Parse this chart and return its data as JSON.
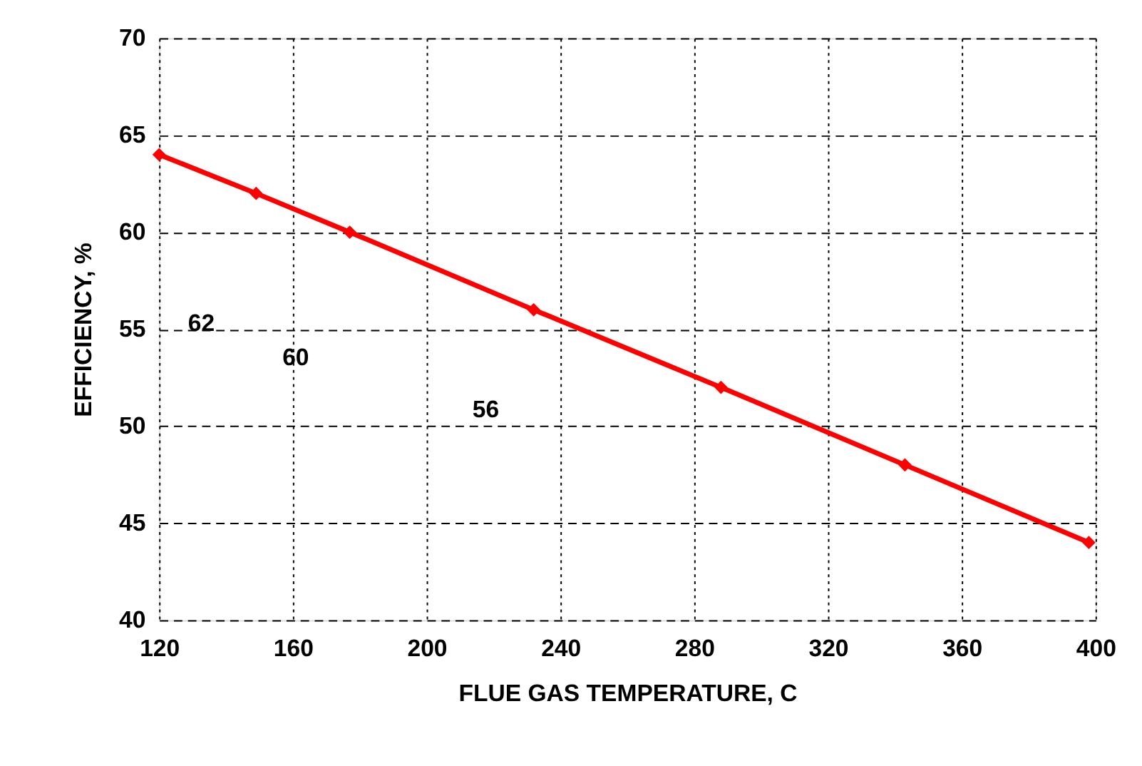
{
  "chart_data": {
    "type": "line",
    "xlabel": "FLUE GAS TEMPERATURE, C",
    "ylabel": "EFFICIENCY, %",
    "x": [
      120,
      149,
      177,
      232,
      288,
      343,
      398
    ],
    "series": [
      {
        "color": "#ff0000",
        "values": [
          64,
          62,
          60,
          56,
          52,
          48,
          44
        ]
      }
    ],
    "xlim": [
      120,
      400
    ],
    "xticks": [
      120,
      160,
      200,
      240,
      280,
      320,
      360,
      400
    ],
    "ylim": [
      40,
      70
    ],
    "yticks": [
      40,
      45,
      50,
      55,
      60,
      65,
      70
    ],
    "grid": true,
    "marker": "diamond",
    "line_style": "solid",
    "annotations": [
      "62",
      "60",
      "56"
    ]
  }
}
